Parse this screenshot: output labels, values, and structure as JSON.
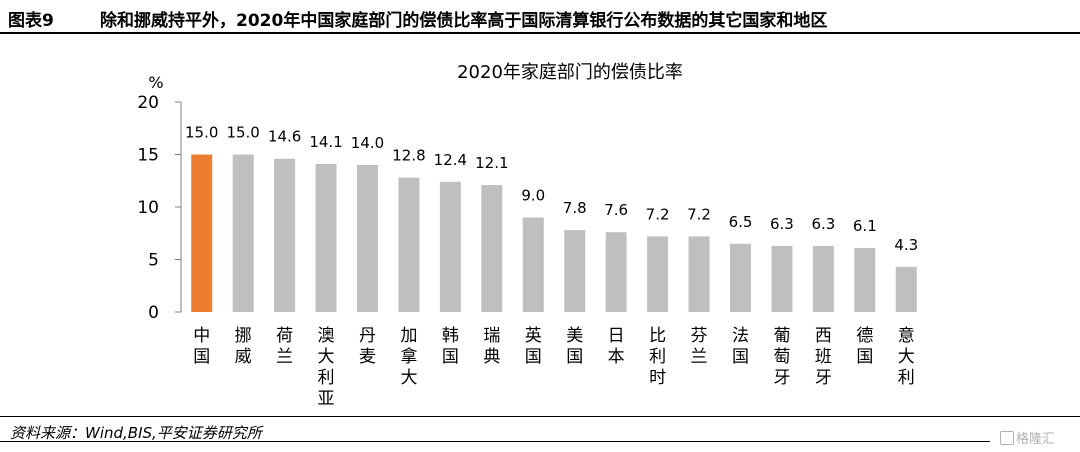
{
  "header": {
    "figure_number": "图表9",
    "figure_title": "除和挪威持平外，2020年中国家庭部门的偿债比率高于国际清算银行公布数据的其它国家和地区"
  },
  "chart_data": {
    "type": "bar",
    "title": "2020年家庭部门的偿债比率",
    "ylabel": "%",
    "ylim": [
      0,
      20
    ],
    "yticks": [
      0,
      5,
      10,
      15,
      20
    ],
    "grid": false,
    "categories": [
      "中国",
      "挪威",
      "荷兰",
      "澳大利亚",
      "丹麦",
      "加拿大",
      "韩国",
      "瑞典",
      "英国",
      "美国",
      "日本",
      "比利时",
      "芬兰",
      "法国",
      "葡萄牙",
      "西班牙",
      "德国",
      "意大利"
    ],
    "values": [
      15.0,
      15.0,
      14.6,
      14.1,
      14.0,
      12.8,
      12.4,
      12.1,
      9.0,
      7.8,
      7.6,
      7.2,
      7.2,
      6.5,
      6.3,
      6.3,
      6.1,
      4.3
    ],
    "value_labels": [
      "15.0",
      "15.0",
      "14.6",
      "14.1",
      "14.0",
      "12.8",
      "12.4",
      "12.1",
      "9.0",
      "7.8",
      "7.6",
      "7.2",
      "7.2",
      "6.5",
      "6.3",
      "6.3",
      "6.1",
      "4.3"
    ],
    "highlight_index": 0,
    "colors": {
      "highlight": "#ED7D31",
      "default": "#BFBFBF",
      "axis": "#7F7F7F"
    }
  },
  "footer": {
    "source": "资料来源：Wind,BIS,平安证券研究所",
    "watermark": "格隆汇"
  }
}
